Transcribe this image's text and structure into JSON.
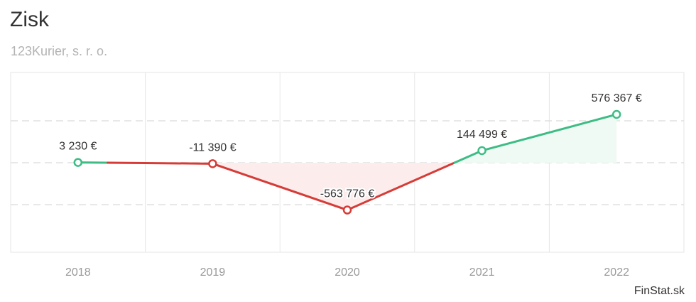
{
  "header": {
    "title": "Zisk",
    "subtitle": "123Kurier, s. r. o."
  },
  "footer": {
    "brand": "FinStat.sk"
  },
  "colors": {
    "positive": "#3dbd85",
    "negative": "#d63c37",
    "positive_fill": "#f0faf5",
    "negative_fill": "#fcecec",
    "grid": "#e6e6e6"
  },
  "chart_data": {
    "type": "line",
    "title": "Zisk",
    "subtitle": "123Kurier, s. r. o.",
    "xlabel": "",
    "ylabel": "",
    "categories": [
      "2018",
      "2019",
      "2020",
      "2021",
      "2022"
    ],
    "series": [
      {
        "values": [
          3230,
          -11390,
          -563776,
          144499,
          576367
        ]
      }
    ],
    "value_labels": [
      "3 230 €",
      "-11 390 €",
      "-563 776 €",
      "144 499 €",
      "576 367 €"
    ],
    "ylim": [
      -1000000,
      1000000
    ],
    "grid": true,
    "legend": "none"
  }
}
